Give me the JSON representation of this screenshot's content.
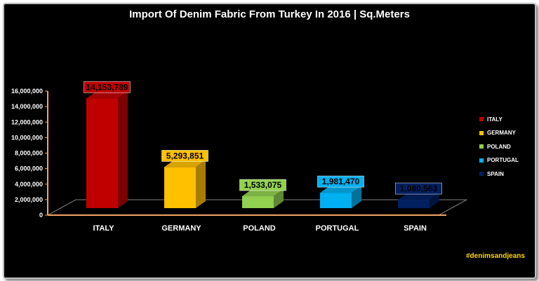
{
  "chart_data": {
    "type": "bar",
    "title": "Import Of Denim Fabric From Turkey In 2016 | Sq.Meters",
    "categories": [
      "ITALY",
      "GERMANY",
      "POLAND",
      "PORTUGAL",
      "SPAIN"
    ],
    "values": [
      14153789,
      5293851,
      1533075,
      1981470,
      1080563
    ],
    "value_labels": [
      "14,153,789",
      "5,293,851",
      "1,533,075",
      "1,981,470",
      "1,080,563"
    ],
    "colors": [
      "#c00000",
      "#ffc000",
      "#92d050",
      "#00b0f0",
      "#002060"
    ],
    "ylim": [
      0,
      16000000
    ],
    "yticks": [
      0,
      2000000,
      4000000,
      6000000,
      8000000,
      10000000,
      12000000,
      14000000,
      16000000
    ],
    "ytick_labels": [
      "0",
      "2,000,000",
      "4,000,000",
      "6,000,000",
      "8,000,000",
      "10,000,000",
      "12,000,000",
      "14,000,000",
      "16,000,000"
    ],
    "legend": {
      "placement": "right",
      "entries": [
        "ITALY",
        "GERMANY",
        "POLAND",
        "PORTUGAL",
        "SPAIN"
      ]
    },
    "grid": false,
    "style": "3d-column"
  },
  "footer": {
    "hashtag": "#denimsandjeans"
  },
  "colors": {
    "background": "#000000",
    "axis": "#f4a460",
    "text": "#ffffff",
    "hashtag": "#ffd700"
  }
}
